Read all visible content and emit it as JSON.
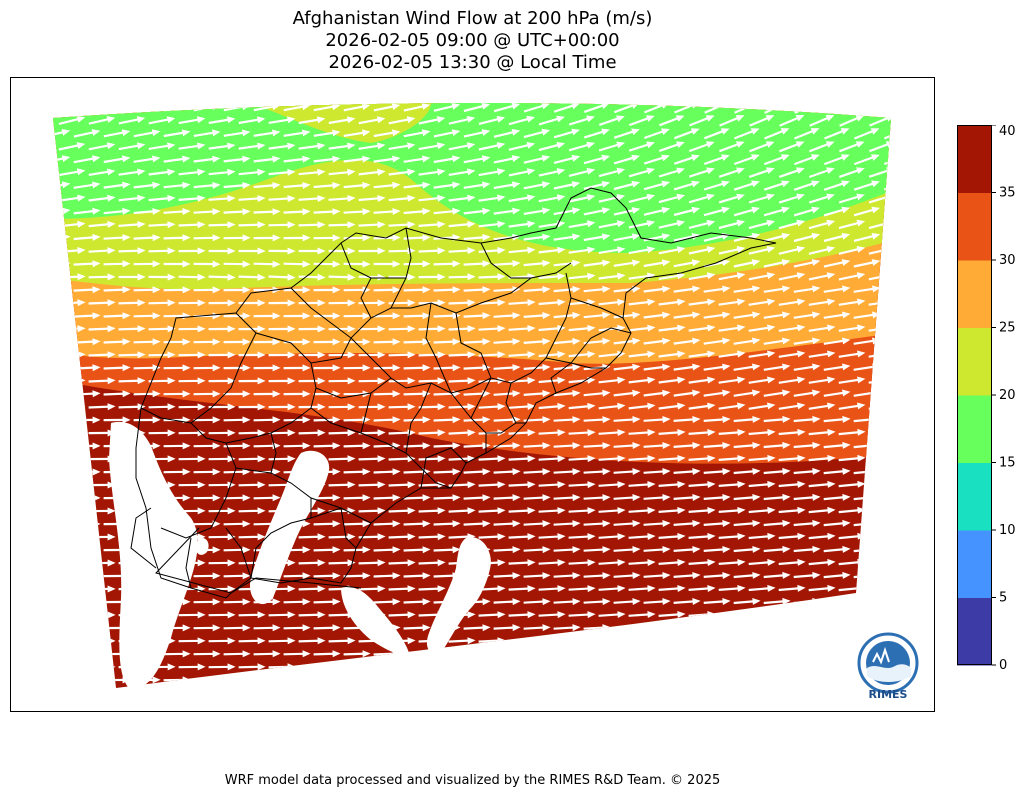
{
  "title": {
    "line1": "Afghanistan Wind Flow at 200 hPa (m/s)",
    "line2": "2026-02-05 09:00 @ UTC+00:00",
    "line3": "2026-02-05 13:30 @ Local Time"
  },
  "colorbar": {
    "levels": [
      0,
      5,
      10,
      15,
      20,
      25,
      30,
      35,
      40
    ],
    "colors": [
      "#3d3ba6",
      "#4593ff",
      "#19e0c0",
      "#66ff5c",
      "#cde82f",
      "#ffab36",
      "#ea5316",
      "#a21603"
    ],
    "tick_labels": [
      "0",
      "5",
      "10",
      "15",
      "20",
      "25",
      "30",
      "35",
      "40"
    ]
  },
  "logo": {
    "text": "RIMES",
    "icon": "rimes-logo-icon"
  },
  "footer": "WRF model data processed and visualized by the RIMES R&D Team. © 2025"
}
